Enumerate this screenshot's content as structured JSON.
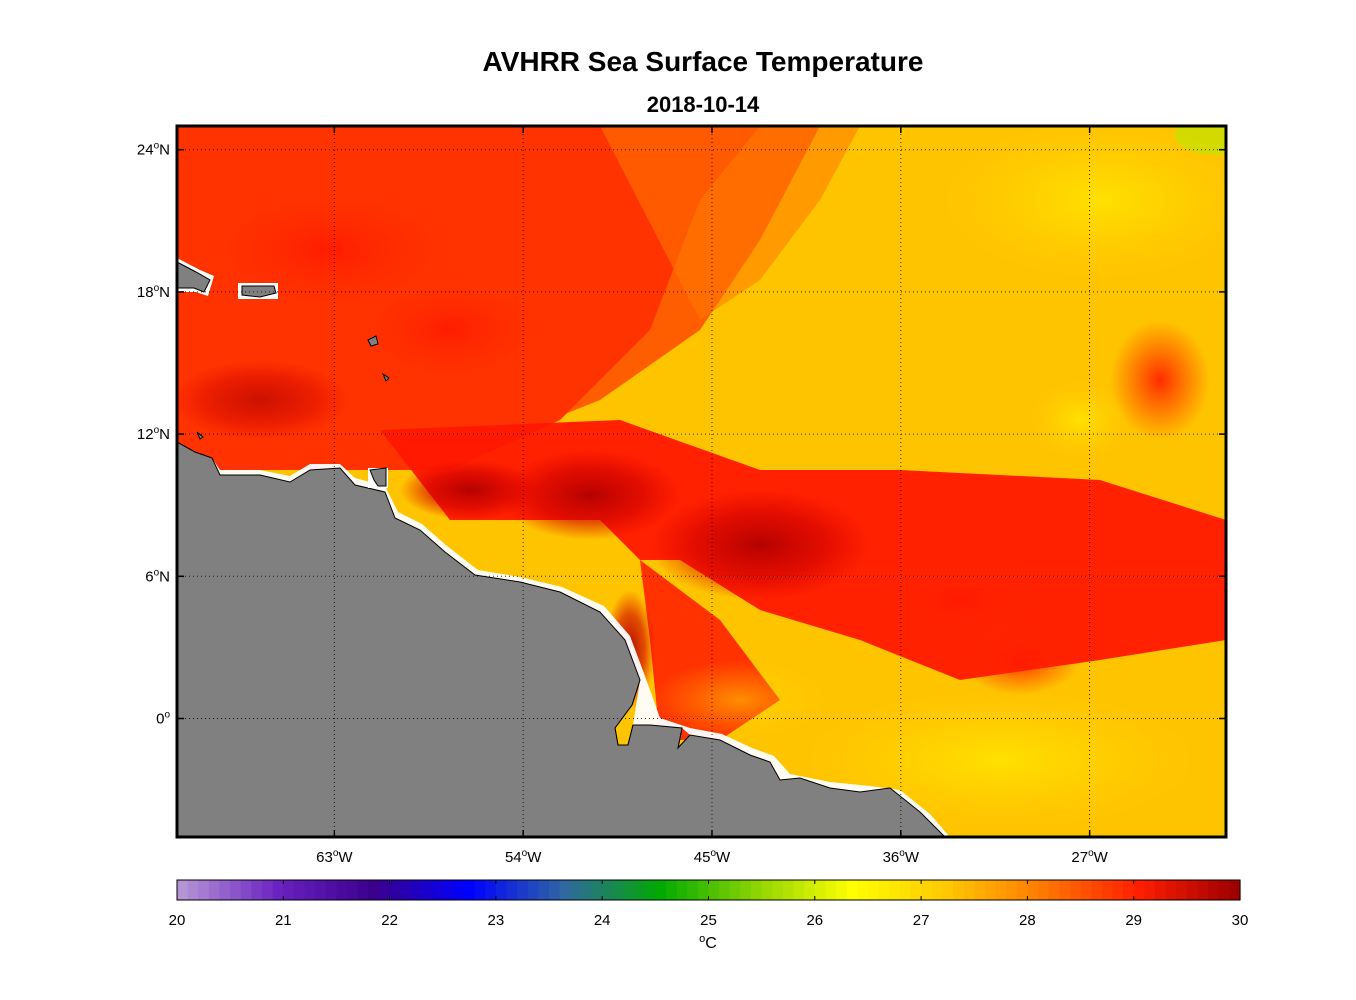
{
  "title": "AVHRR Sea Surface Temperature",
  "subtitle": "2018-10-14",
  "map": {
    "lon_range": [
      -70.5,
      -20.5
    ],
    "lat_range": [
      -5,
      25
    ],
    "lon_ticks": [
      {
        "value": -63,
        "num": "63",
        "hem": "W"
      },
      {
        "value": -54,
        "num": "54",
        "hem": "W"
      },
      {
        "value": -45,
        "num": "45",
        "hem": "W"
      },
      {
        "value": -36,
        "num": "36",
        "hem": "W"
      },
      {
        "value": -27,
        "num": "27",
        "hem": "W"
      }
    ],
    "lat_ticks": [
      {
        "value": 24,
        "num": "24",
        "hem": "N"
      },
      {
        "value": 18,
        "num": "18",
        "hem": "N"
      },
      {
        "value": 12,
        "num": "12",
        "hem": "N"
      },
      {
        "value": 6,
        "num": "6",
        "hem": "N"
      },
      {
        "value": 0,
        "num": "0",
        "hem": ""
      }
    ],
    "degree_symbol": "o",
    "grid": "dotted",
    "land_color": "#808080",
    "colormap": "sea surface temperature, 20 to 30"
  },
  "colorbar": {
    "min": 20,
    "max": 30,
    "tick_labels": [
      "20",
      "21",
      "22",
      "23",
      "24",
      "25",
      "26",
      "27",
      "28",
      "29",
      "30"
    ],
    "unit_degree": "o",
    "unit": "C",
    "colors": [
      "#b494d4",
      "#6a22c0",
      "#3a008c",
      "#0000ff",
      "#3068a0",
      "#00aa00",
      "#8ed400",
      "#ffff00",
      "#ffc800",
      "#ff7800",
      "#ff1e00",
      "#a00000"
    ]
  }
}
